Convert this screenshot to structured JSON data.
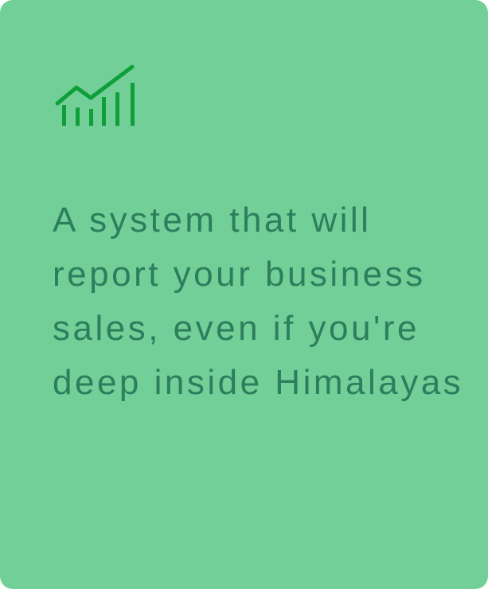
{
  "card": {
    "background_color": "#72cf97",
    "icon": "growth-chart-icon",
    "icon_color": "#0f9f3a",
    "text_color": "#2d7e5c",
    "tagline": "A system that will report your business sales, even if you're deep inside Himalayas"
  }
}
